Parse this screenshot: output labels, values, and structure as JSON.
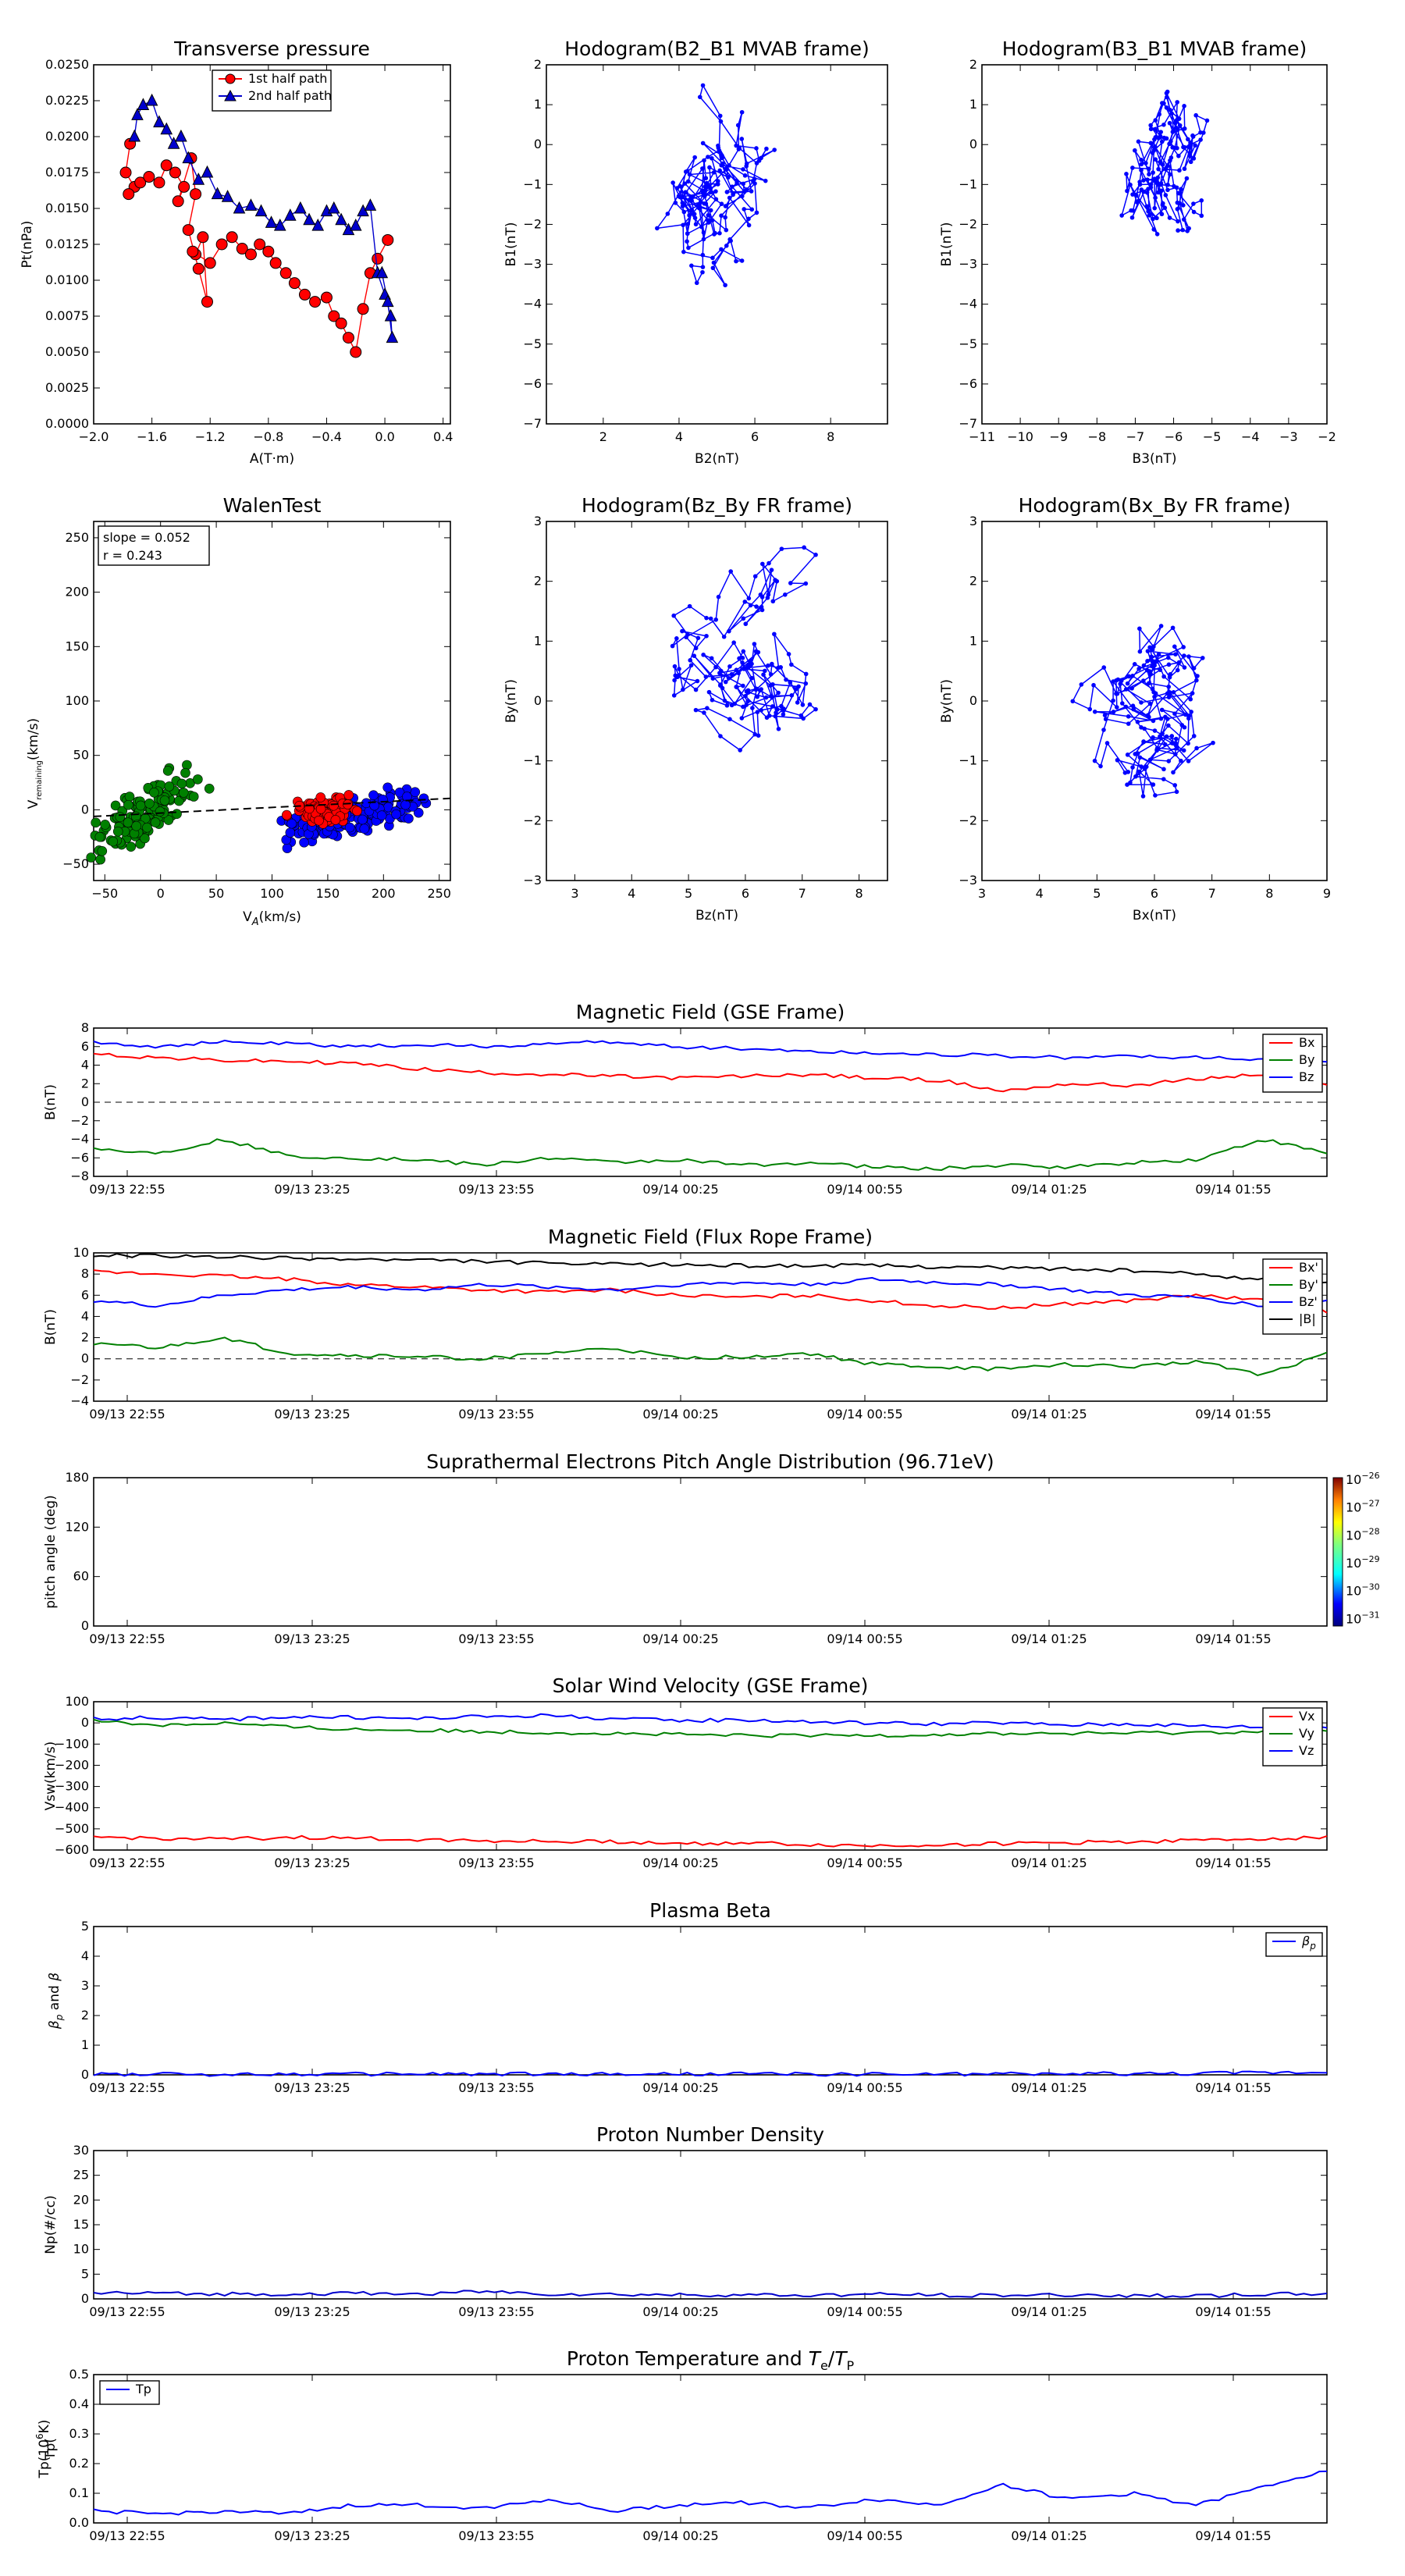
{
  "times": [
    "09/13 22:55",
    "09/13 23:25",
    "09/13 23:55",
    "09/14 00:25",
    "09/14 00:55",
    "09/14 01:25",
    "09/14 01:55"
  ],
  "chart_data": [
    {
      "type": "line",
      "title": "Transverse pressure",
      "xlabel": "A(T·m)",
      "ylabel": "Pt(nPa)",
      "xlim": [
        -2.0,
        0.45
      ],
      "ylim": [
        0.0,
        0.025
      ],
      "xticks": [
        "−2.0",
        "−1.6",
        "−1.2",
        "−0.8",
        "−0.4",
        "0.0",
        "0.4"
      ],
      "yticks": [
        "0.0000",
        "0.0025",
        "0.0050",
        "0.0075",
        "0.0100",
        "0.0125",
        "0.0150",
        "0.0175",
        "0.0200",
        "0.0225",
        "0.0250"
      ],
      "legend": "upper-center",
      "series": [
        {
          "name": "1st half path",
          "color": "#ff0000",
          "marker": "circle",
          "x": [
            -1.75,
            -1.78,
            -1.72,
            -1.76,
            -1.68,
            -1.62,
            -1.55,
            -1.5,
            -1.44,
            -1.38,
            -1.42,
            -1.33,
            -1.3,
            -1.35,
            -1.28,
            -1.22,
            -1.25,
            -1.3,
            -1.32,
            -1.2,
            -1.12,
            -1.05,
            -0.98,
            -0.92,
            -0.86,
            -0.8,
            -0.75,
            -0.68,
            -0.62,
            -0.55,
            -0.48,
            -0.4,
            -0.35,
            -0.3,
            -0.25,
            -0.2,
            -0.15,
            -0.1,
            -0.05,
            0.02
          ],
          "y": [
            0.0195,
            0.0175,
            0.0165,
            0.016,
            0.0168,
            0.0172,
            0.0168,
            0.018,
            0.0175,
            0.0165,
            0.0155,
            0.0185,
            0.016,
            0.0135,
            0.0108,
            0.0085,
            0.013,
            0.0118,
            0.012,
            0.0112,
            0.0125,
            0.013,
            0.0122,
            0.0118,
            0.0125,
            0.012,
            0.0112,
            0.0105,
            0.0098,
            0.009,
            0.0085,
            0.0088,
            0.0075,
            0.007,
            0.006,
            0.005,
            0.008,
            0.0105,
            0.0115,
            0.0128
          ]
        },
        {
          "name": "2nd half path",
          "color": "#0000cc",
          "marker": "triangle",
          "x": [
            -1.72,
            -1.7,
            -1.66,
            -1.6,
            -1.55,
            -1.5,
            -1.45,
            -1.4,
            -1.35,
            -1.28,
            -1.22,
            -1.15,
            -1.08,
            -1.0,
            -0.92,
            -0.85,
            -0.78,
            -0.72,
            -0.65,
            -0.58,
            -0.52,
            -0.46,
            -0.4,
            -0.35,
            -0.3,
            -0.25,
            -0.2,
            -0.15,
            -0.1,
            -0.05,
            0.0,
            0.04,
            0.05,
            0.02,
            -0.02
          ],
          "y": [
            0.02,
            0.0215,
            0.0222,
            0.0225,
            0.021,
            0.0205,
            0.0195,
            0.02,
            0.0185,
            0.017,
            0.0175,
            0.016,
            0.0158,
            0.015,
            0.0152,
            0.0148,
            0.014,
            0.0138,
            0.0145,
            0.015,
            0.0142,
            0.0138,
            0.0148,
            0.015,
            0.0142,
            0.0135,
            0.0138,
            0.0148,
            0.0152,
            0.0105,
            0.009,
            0.0075,
            0.006,
            0.0085,
            0.0105
          ]
        }
      ]
    },
    {
      "type": "line",
      "title": "Hodogram(B2_B1 MVAB frame)",
      "xlabel": "B2(nT)",
      "ylabel": "B1(nT)",
      "xlim": [
        0.5,
        9.5
      ],
      "ylim": [
        -7,
        2
      ],
      "xticks": [
        "2",
        "4",
        "6",
        "8"
      ],
      "yticks": [
        "−7",
        "−6",
        "−5",
        "−4",
        "−3",
        "−2",
        "−1",
        "0",
        "1",
        "2"
      ]
    },
    {
      "type": "line",
      "title": "Hodogram(B3_B1 MVAB frame)",
      "xlabel": "B3(nT)",
      "ylabel": "B1(nT)",
      "xlim": [
        -11,
        -2
      ],
      "ylim": [
        -7,
        2
      ],
      "xticks": [
        "−11",
        "−10",
        "−9",
        "−8",
        "−7",
        "−6",
        "−5",
        "−4",
        "−3",
        "−2"
      ],
      "yticks": [
        "−7",
        "−6",
        "−5",
        "−4",
        "−3",
        "−2",
        "−1",
        "0",
        "1",
        "2"
      ]
    },
    {
      "type": "scatter",
      "title": "WalenTest",
      "xlabel": "V",
      "xlabel_sub": "A",
      "xlabel_unit": "(km/s)",
      "ylabel": "V",
      "ylabel_sub": "remaining",
      "ylabel_unit": "(km/s)",
      "xlim": [
        -60,
        260
      ],
      "ylim": [
        -65,
        265
      ],
      "xticks": [
        "−50",
        "0",
        "50",
        "100",
        "150",
        "200",
        "250"
      ],
      "yticks": [
        "−50",
        "0",
        "50",
        "100",
        "150",
        "200",
        "250"
      ],
      "annotation": [
        "slope = 0.052",
        "r = 0.243"
      ],
      "fit": {
        "slope": 0.052,
        "intercept": -3
      }
    },
    {
      "type": "line",
      "title": "Hodogram(Bz_By FR frame)",
      "xlabel": "Bz(nT)",
      "ylabel": "By(nT)",
      "xlim": [
        2.5,
        8.5
      ],
      "ylim": [
        -3,
        3
      ],
      "xticks": [
        "3",
        "4",
        "5",
        "6",
        "7",
        "8"
      ],
      "yticks": [
        "−3",
        "−2",
        "−1",
        "0",
        "1",
        "2",
        "3"
      ]
    },
    {
      "type": "line",
      "title": "Hodogram(Bx_By FR frame)",
      "xlabel": "Bx(nT)",
      "ylabel": "By(nT)",
      "xlim": [
        3,
        9
      ],
      "ylim": [
        -3,
        3
      ],
      "xticks": [
        "3",
        "4",
        "5",
        "6",
        "7",
        "8",
        "9"
      ],
      "yticks": [
        "−3",
        "−2",
        "−1",
        "0",
        "1",
        "2",
        "3"
      ]
    },
    {
      "type": "line",
      "title": "Magnetic Field (GSE Frame)",
      "ylabel": "B(nT)",
      "ylim": [
        -8,
        8
      ],
      "yticks": [
        "−8",
        "−6",
        "−4",
        "−2",
        "0",
        "2",
        "4",
        "6",
        "8"
      ],
      "legend": "right",
      "series": [
        {
          "name": "Bx",
          "color": "#ff0000",
          "values": [
            5.2,
            4.8,
            4.5,
            4.4,
            4.2,
            3.6,
            3.2,
            3.0,
            2.8,
            2.6,
            2.8,
            3.0,
            2.6,
            2.4,
            1.2,
            2.0,
            1.8,
            2.5,
            3.0,
            1.8
          ]
        },
        {
          "name": "By",
          "color": "#008000",
          "values": [
            -5.0,
            -5.5,
            -4.0,
            -5.8,
            -6.0,
            -6.2,
            -6.8,
            -6.0,
            -6.5,
            -6.2,
            -6.8,
            -6.5,
            -7.0,
            -7.2,
            -6.8,
            -7.0,
            -6.5,
            -6.2,
            -4.0,
            -5.5
          ]
        },
        {
          "name": "Bz",
          "color": "#0000ff",
          "values": [
            6.5,
            6.0,
            6.5,
            6.3,
            6.0,
            6.2,
            6.0,
            6.3,
            6.5,
            6.0,
            5.8,
            5.5,
            5.3,
            5.2,
            5.0,
            4.8,
            5.0,
            4.8,
            4.6,
            4.5
          ]
        }
      ]
    },
    {
      "type": "line",
      "title": "Magnetic Field (Flux Rope Frame)",
      "ylabel": "B(nT)",
      "ylim": [
        -4,
        10
      ],
      "yticks": [
        "−4",
        "−2",
        "0",
        "2",
        "4",
        "6",
        "8",
        "10"
      ],
      "legend": "right",
      "series": [
        {
          "name": "Bx'",
          "color": "#ff0000",
          "values": [
            8.2,
            8.0,
            7.8,
            7.5,
            7.0,
            6.8,
            6.5,
            6.3,
            6.5,
            6.0,
            5.8,
            6.0,
            5.5,
            5.0,
            4.8,
            5.2,
            5.5,
            6.0,
            5.5,
            4.5
          ]
        },
        {
          "name": "By'",
          "color": "#008000",
          "values": [
            1.5,
            1.0,
            2.0,
            0.5,
            0.3,
            0.2,
            0.0,
            0.5,
            1.0,
            0.0,
            0.2,
            0.5,
            -0.5,
            -0.8,
            -1.0,
            -0.5,
            -0.8,
            -0.2,
            -1.5,
            0.5
          ]
        },
        {
          "name": "Bz'",
          "color": "#0000ff",
          "values": [
            5.5,
            5.0,
            6.0,
            6.5,
            6.8,
            6.5,
            7.0,
            6.8,
            6.5,
            7.0,
            7.2,
            7.0,
            7.5,
            7.2,
            7.0,
            6.5,
            6.0,
            5.8,
            5.0,
            5.5
          ]
        },
        {
          "name": "|B|",
          "color": "#000000",
          "values": [
            9.8,
            9.7,
            9.6,
            9.5,
            9.4,
            9.3,
            9.2,
            9.0,
            8.9,
            8.9,
            8.8,
            8.8,
            8.8,
            8.7,
            8.6,
            8.5,
            8.3,
            8.0,
            7.5,
            7.3
          ]
        }
      ]
    },
    {
      "type": "heatmap",
      "title": "Suprathermal Electrons Pitch Angle Distribution (96.71eV)",
      "ylabel": "pitch angle (deg)",
      "ylim": [
        0,
        180
      ],
      "yticks": [
        "0",
        "60",
        "120",
        "180"
      ],
      "colorbar": {
        "base": "10",
        "exponents": [
          "−26",
          "−27",
          "−28",
          "−29",
          "−30",
          "−31"
        ]
      }
    },
    {
      "type": "line",
      "title": "Solar Wind Velocity (GSE Frame)",
      "ylabel": "Vsw(km/s)",
      "ylim": [
        -600,
        100
      ],
      "yticks": [
        "−600",
        "−500",
        "−400",
        "−300",
        "−200",
        "−100",
        "0",
        "100"
      ],
      "legend": "right",
      "series": [
        {
          "name": "Vx",
          "color": "#ff0000",
          "values": [
            -540,
            -545,
            -550,
            -540,
            -545,
            -550,
            -555,
            -560,
            -560,
            -570,
            -565,
            -575,
            -580,
            -575,
            -570,
            -565,
            -560,
            -555,
            -545,
            -540
          ]
        },
        {
          "name": "Vy",
          "color": "#008000",
          "values": [
            10,
            -10,
            0,
            -20,
            -30,
            -35,
            -40,
            -45,
            -50,
            -55,
            -60,
            -60,
            -58,
            -55,
            -50,
            -50,
            -48,
            -45,
            -40,
            -40
          ]
        },
        {
          "name": "Vz",
          "color": "#0000ff",
          "values": [
            20,
            25,
            15,
            30,
            25,
            20,
            30,
            35,
            20,
            10,
            15,
            5,
            0,
            -5,
            0,
            -10,
            -5,
            -15,
            -20,
            -20
          ]
        }
      ]
    },
    {
      "type": "line",
      "title": "Plasma Beta",
      "ylim": [
        0,
        5
      ],
      "yticks": [
        "0",
        "1",
        "2",
        "3",
        "4",
        "5"
      ],
      "legend": "upper-right",
      "series": [
        {
          "name": "β",
          "name_sub": "p",
          "color": "#0000ff",
          "values": [
            0.02,
            0.02,
            0.02,
            0.02,
            0.02,
            0.03,
            0.02,
            0.02,
            0.02,
            0.02,
            0.03,
            0.02,
            0.02,
            0.02,
            0.03,
            0.03,
            0.04,
            0.05,
            0.08,
            0.1
          ]
        }
      ]
    },
    {
      "type": "line",
      "title": "Proton Number Density",
      "ylabel": "Np(#/cc)",
      "ylim": [
        0,
        30
      ],
      "yticks": [
        "0",
        "5",
        "10",
        "15",
        "20",
        "25",
        "30"
      ],
      "series": [
        {
          "name": "",
          "color": "#0000cc",
          "values": [
            1.2,
            1.1,
            1.0,
            1.0,
            1.1,
            1.0,
            1.5,
            1.0,
            0.9,
            0.8,
            0.8,
            0.7,
            0.9,
            0.8,
            0.7,
            0.8,
            0.7,
            0.6,
            0.9,
            1.0
          ]
        }
      ]
    },
    {
      "type": "line",
      "title": "Proton Temperature and",
      "title_math": {
        "a": "T",
        "a_sub": "e",
        "sep": "/",
        "b": "T",
        "b_sub": "P"
      },
      "ylabel": "Tp(",
      "ylabel_pow": "6",
      "ylabel_unit": "K)",
      "ylabel_base": "10",
      "ylim": [
        0,
        0.5
      ],
      "yticks": [
        "0.0",
        "0.1",
        "0.2",
        "0.3",
        "0.4",
        "0.5"
      ],
      "legend": "upper-left",
      "series": [
        {
          "name": "Tp",
          "color": "#0000ff",
          "values": [
            0.04,
            0.03,
            0.04,
            0.03,
            0.06,
            0.06,
            0.05,
            0.08,
            0.04,
            0.06,
            0.07,
            0.05,
            0.08,
            0.06,
            0.13,
            0.08,
            0.1,
            0.06,
            0.12,
            0.18
          ]
        }
      ]
    }
  ]
}
